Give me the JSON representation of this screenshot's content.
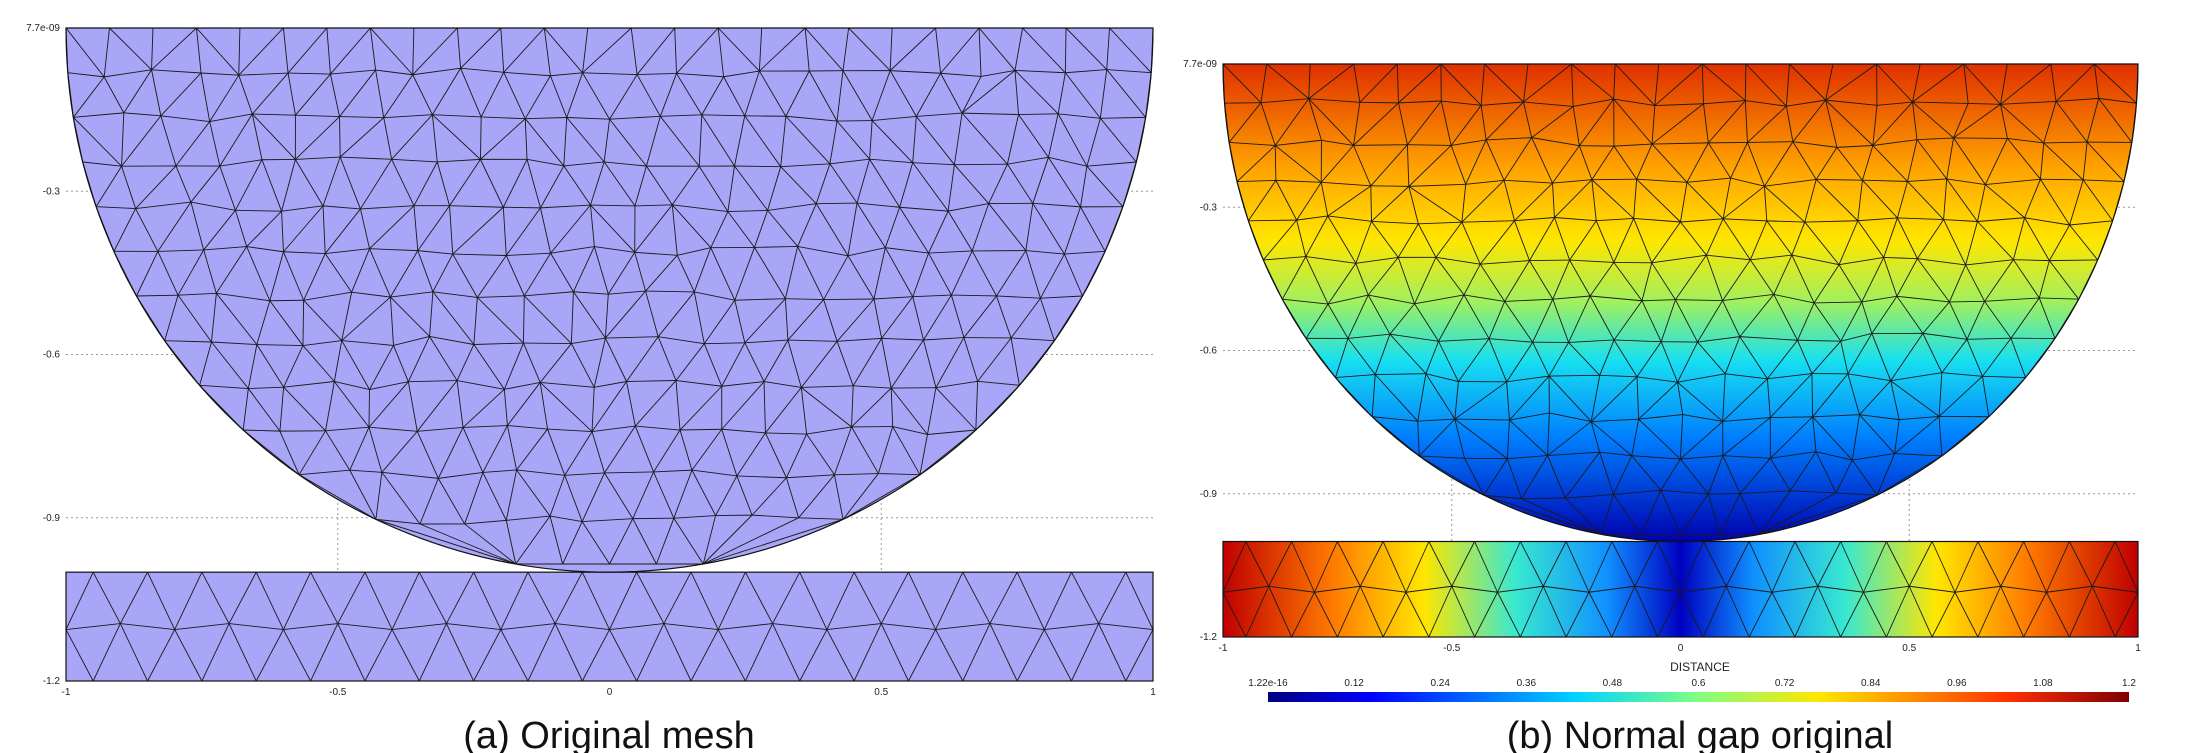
{
  "panels": [
    {
      "id": "a",
      "caption": "(a) Original mesh",
      "fill_color": "#a9a5f7",
      "y_ticks": [
        "7.7e-09",
        "-0.3",
        "-0.6",
        "-0.9",
        "-1.2"
      ],
      "x_ticks": [
        "-1",
        "-0.5",
        "0",
        "0.5",
        "1"
      ],
      "xlabel": ""
    },
    {
      "id": "b",
      "caption": "(b) Normal gap original",
      "colormap": "jet",
      "y_ticks": [
        "7.7e-09",
        "-0.3",
        "-0.6",
        "-0.9",
        "-1.2"
      ],
      "x_ticks": [
        "-1",
        "-0.5",
        "0",
        "0.5",
        "1"
      ],
      "xlabel": "DISTANCE",
      "colorbar_ticks": [
        "1.22e-16",
        "0.12",
        "0.24",
        "0.36",
        "0.48",
        "0.6",
        "0.72",
        "0.84",
        "0.96",
        "1.08",
        "1.2"
      ]
    }
  ],
  "colors": {
    "mesh_fill": "#a9a5f7",
    "mesh_line": "#1a1a1a",
    "grid": "#999999"
  }
}
